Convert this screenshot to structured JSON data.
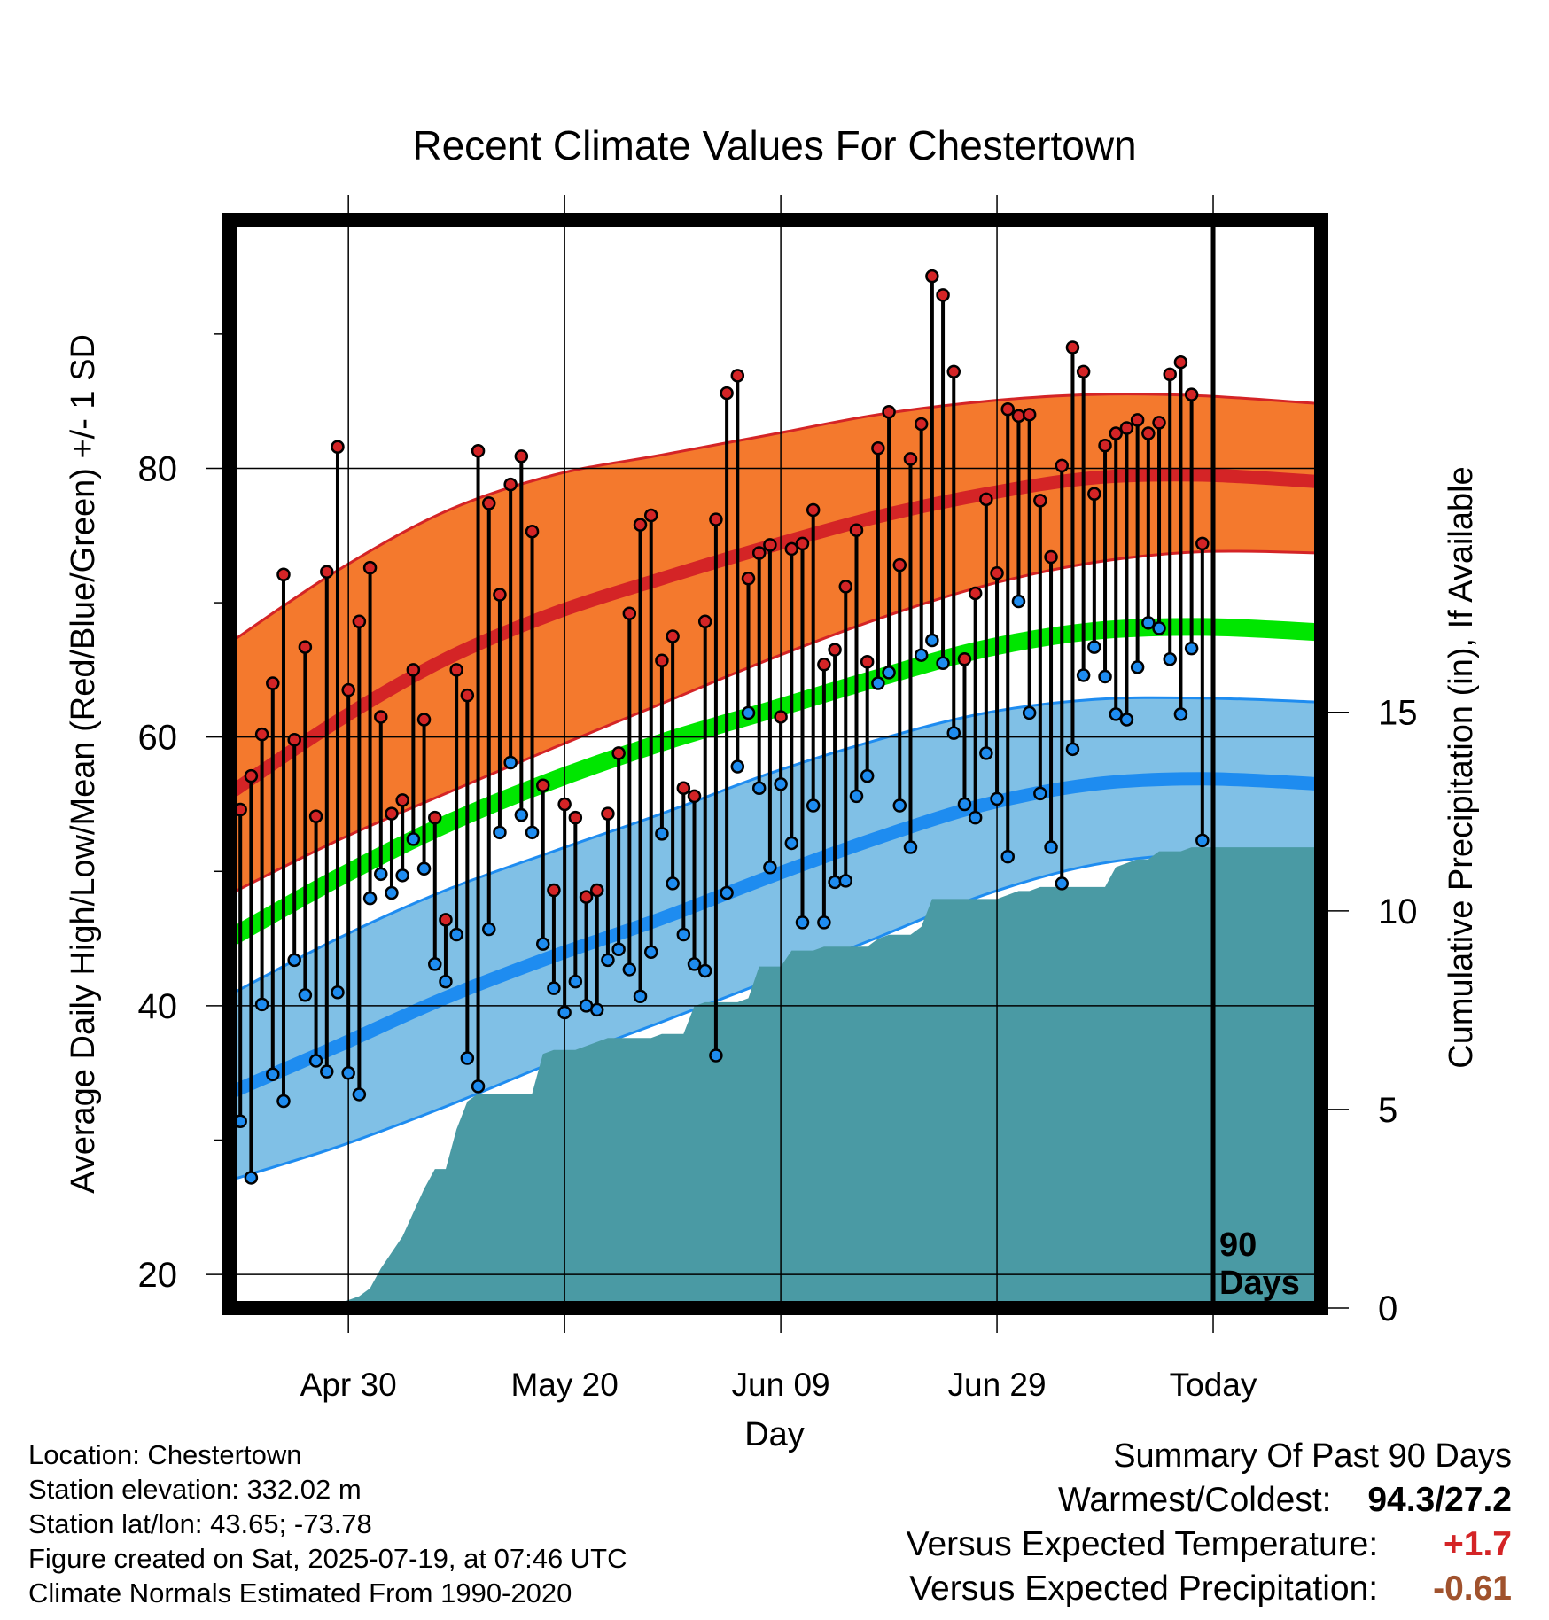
{
  "chart_data": {
    "type": "line",
    "title": "Recent Climate Values For Chestertown",
    "xlabel": "Day",
    "ylabel": "Average Daily High/Low/Mean (Red/Blue/Green) +/- 1 SD",
    "y2label": "Cumulative Precipitation (in), If Available",
    "xlim": [
      0,
      101
    ],
    "ylim": [
      17.5,
      98.5
    ],
    "y2lim": [
      0,
      27.4
    ],
    "x_ticks": [
      {
        "x": 11,
        "label": "Apr 30"
      },
      {
        "x": 31,
        "label": "May 20"
      },
      {
        "x": 51,
        "label": "Jun 09"
      },
      {
        "x": 71,
        "label": "Jun 29"
      },
      {
        "x": 91,
        "label": "Today"
      }
    ],
    "y_ticks": [
      20,
      40,
      60,
      80
    ],
    "y_minor_ticks": [
      30,
      50,
      70,
      90
    ],
    "y2_ticks": [
      0,
      5,
      10,
      15
    ],
    "grid": true,
    "today_x": 91,
    "today_label_line1": "90",
    "today_label_line2": "Days",
    "colors": {
      "high_band": "#f4792d",
      "high_band_edge": "#d42426",
      "high_mean": "#d42426",
      "low_band": "#80c0e6",
      "low_band_edge": "#1e8cf0",
      "low_mean": "#1e8cf0",
      "mean": "#00e600",
      "precip": "#4a9aa4",
      "high_dot": "#d42426",
      "low_dot": "#1e8cf0"
    },
    "normal_high": {
      "x": [
        0,
        10,
        20,
        30,
        40,
        50,
        60,
        70,
        80,
        90,
        101
      ],
      "y": [
        55.8,
        61.2,
        65.8,
        69.2,
        71.8,
        74.2,
        76.4,
        78.1,
        79.3,
        79.5,
        79.0
      ],
      "sd_upper": [
        67.0,
        72.4,
        76.8,
        79.5,
        81.0,
        82.5,
        84.0,
        85.0,
        85.5,
        85.4,
        84.8
      ],
      "sd_lower": [
        48.3,
        52.3,
        55.8,
        59.2,
        62.5,
        65.8,
        68.8,
        71.3,
        73.0,
        73.8,
        73.7
      ]
    },
    "normal_low": {
      "x": [
        0,
        10,
        20,
        30,
        40,
        50,
        60,
        70,
        80,
        90,
        101
      ],
      "y": [
        33.5,
        37.0,
        40.6,
        43.7,
        46.5,
        49.6,
        52.5,
        55.0,
        56.5,
        56.9,
        56.5
      ],
      "sd_upper": [
        40.8,
        45.0,
        48.6,
        51.5,
        54.3,
        57.3,
        59.8,
        61.8,
        62.8,
        62.9,
        62.6
      ],
      "sd_lower": [
        27.0,
        29.5,
        32.5,
        35.8,
        38.8,
        41.9,
        45.1,
        48.3,
        50.5,
        51.3,
        51.1
      ]
    },
    "normal_mean": {
      "x": [
        0,
        10,
        20,
        30,
        40,
        50,
        60,
        70,
        80,
        90,
        101
      ],
      "y": [
        45.0,
        49.5,
        53.5,
        56.8,
        59.6,
        62.0,
        64.4,
        66.6,
        67.9,
        68.2,
        67.8
      ]
    },
    "daily": {
      "x": [
        1,
        2,
        3,
        4,
        5,
        6,
        7,
        8,
        9,
        10,
        11,
        12,
        13,
        14,
        15,
        16,
        17,
        18,
        19,
        20,
        21,
        22,
        23,
        24,
        25,
        26,
        27,
        28,
        29,
        30,
        31,
        32,
        33,
        34,
        35,
        36,
        37,
        38,
        39,
        40,
        41,
        42,
        43,
        44,
        45,
        46,
        47,
        48,
        49,
        50,
        51,
        52,
        53,
        54,
        55,
        56,
        57,
        58,
        59,
        60,
        61,
        62,
        63,
        64,
        65,
        66,
        67,
        68,
        69,
        70,
        71,
        72,
        73,
        74,
        75,
        76,
        77,
        78,
        79,
        80,
        81,
        82,
        83,
        84,
        85,
        86,
        87,
        88,
        89,
        90
      ],
      "high": [
        54.6,
        57.1,
        60.2,
        64.0,
        72.1,
        59.8,
        66.7,
        54.1,
        72.3,
        81.6,
        63.5,
        68.6,
        72.6,
        61.5,
        54.3,
        55.3,
        65.0,
        61.3,
        54.0,
        46.4,
        65.0,
        63.1,
        81.3,
        77.4,
        70.6,
        78.8,
        80.9,
        75.3,
        56.4,
        48.6,
        55.0,
        54.0,
        48.1,
        48.6,
        54.3,
        58.8,
        69.2,
        75.8,
        76.5,
        65.7,
        67.5,
        56.2,
        55.6,
        68.6,
        76.2,
        85.6,
        86.9,
        71.8,
        73.7,
        74.3,
        61.5,
        74.0,
        74.4,
        76.9,
        65.4,
        66.5,
        71.2,
        75.4,
        65.6,
        81.5,
        84.2,
        72.8,
        80.7,
        83.3,
        94.3,
        92.9,
        87.2,
        65.8,
        70.7,
        77.7,
        72.2,
        84.4,
        83.9,
        84.0,
        77.6,
        73.4,
        80.2,
        89.0,
        87.2,
        78.1,
        81.7,
        82.6,
        83.0,
        83.6,
        82.6,
        83.4,
        87.0,
        87.9,
        85.5,
        74.4
      ],
      "low": [
        31.4,
        27.2,
        40.1,
        34.9,
        32.9,
        43.4,
        40.8,
        35.9,
        35.1,
        41.0,
        35.0,
        33.4,
        48.0,
        49.8,
        48.4,
        49.7,
        52.4,
        50.2,
        43.1,
        41.8,
        45.3,
        36.1,
        34.0,
        45.7,
        52.9,
        58.1,
        54.2,
        52.9,
        44.6,
        41.3,
        39.5,
        41.8,
        40.0,
        39.7,
        43.4,
        44.2,
        42.7,
        40.7,
        44.0,
        52.8,
        49.1,
        45.3,
        43.1,
        42.6,
        36.3,
        48.4,
        57.8,
        61.8,
        56.2,
        50.3,
        56.5,
        52.1,
        46.2,
        54.9,
        46.2,
        49.2,
        49.3,
        55.6,
        57.1,
        64.0,
        64.8,
        54.9,
        51.8,
        66.1,
        67.2,
        65.5,
        60.3,
        55.0,
        54.0,
        58.8,
        55.4,
        51.1,
        70.1,
        61.8,
        55.8,
        51.8,
        49.1,
        59.1,
        64.6,
        66.7,
        64.5,
        61.7,
        61.3,
        65.2,
        68.5,
        68.1,
        65.8,
        61.7,
        66.6,
        52.3
      ]
    },
    "precip": {
      "x": [
        0,
        8,
        9,
        10,
        11,
        12,
        13,
        14,
        15,
        16,
        17,
        18,
        19,
        20,
        21,
        22,
        23,
        24,
        25,
        26,
        27,
        28,
        29,
        30,
        31,
        32,
        33,
        34,
        35,
        36,
        37,
        38,
        39,
        40,
        41,
        42,
        43,
        44,
        45,
        46,
        47,
        48,
        49,
        50,
        51,
        52,
        53,
        54,
        55,
        56,
        57,
        58,
        59,
        60,
        61,
        62,
        63,
        64,
        65,
        66,
        67,
        68,
        69,
        70,
        71,
        72,
        73,
        74,
        75,
        76,
        77,
        78,
        79,
        80,
        81,
        82,
        83,
        84,
        85,
        86,
        87,
        88,
        89,
        90,
        91,
        101
      ],
      "y": [
        0,
        0,
        0.05,
        0.1,
        0.2,
        0.3,
        0.5,
        1.0,
        1.4,
        1.8,
        2.4,
        3.0,
        3.5,
        3.5,
        4.5,
        5.2,
        5.4,
        5.4,
        5.4,
        5.4,
        5.4,
        5.4,
        6.4,
        6.5,
        6.5,
        6.5,
        6.6,
        6.7,
        6.8,
        6.8,
        6.8,
        6.8,
        6.8,
        6.9,
        6.9,
        6.9,
        7.6,
        7.7,
        7.7,
        7.7,
        7.7,
        7.8,
        8.6,
        8.6,
        8.6,
        9.0,
        9.0,
        9.0,
        9.1,
        9.1,
        9.1,
        9.1,
        9.1,
        9.3,
        9.4,
        9.4,
        9.4,
        9.6,
        10.3,
        10.3,
        10.3,
        10.3,
        10.3,
        10.3,
        10.3,
        10.4,
        10.5,
        10.5,
        10.6,
        10.6,
        10.6,
        10.6,
        10.6,
        10.6,
        10.6,
        11.1,
        11.2,
        11.3,
        11.3,
        11.5,
        11.5,
        11.5,
        11.6,
        11.6,
        11.6,
        11.6
      ]
    }
  },
  "meta": {
    "location": "Location: Chestertown",
    "elevation": "Station elevation: 332.02 m",
    "latlon": "Station lat/lon: 43.65; -73.78",
    "created": "Figure created on Sat, 2025-07-19, at 07:46 UTC",
    "normals": "Climate Normals Estimated From 1990-2020"
  },
  "summary": {
    "title": "Summary Of Past 90 Days",
    "warmest_label": "Warmest/Coldest:",
    "warmest_value": "94.3",
    "coldest_value": "27.2",
    "temp_label": "Versus Expected Temperature:",
    "temp_value": "+1.7",
    "temp_color": "#d42426",
    "precip_label": "Versus Expected Precipitation:",
    "precip_value": "-0.61",
    "precip_color": "#a0522d"
  }
}
